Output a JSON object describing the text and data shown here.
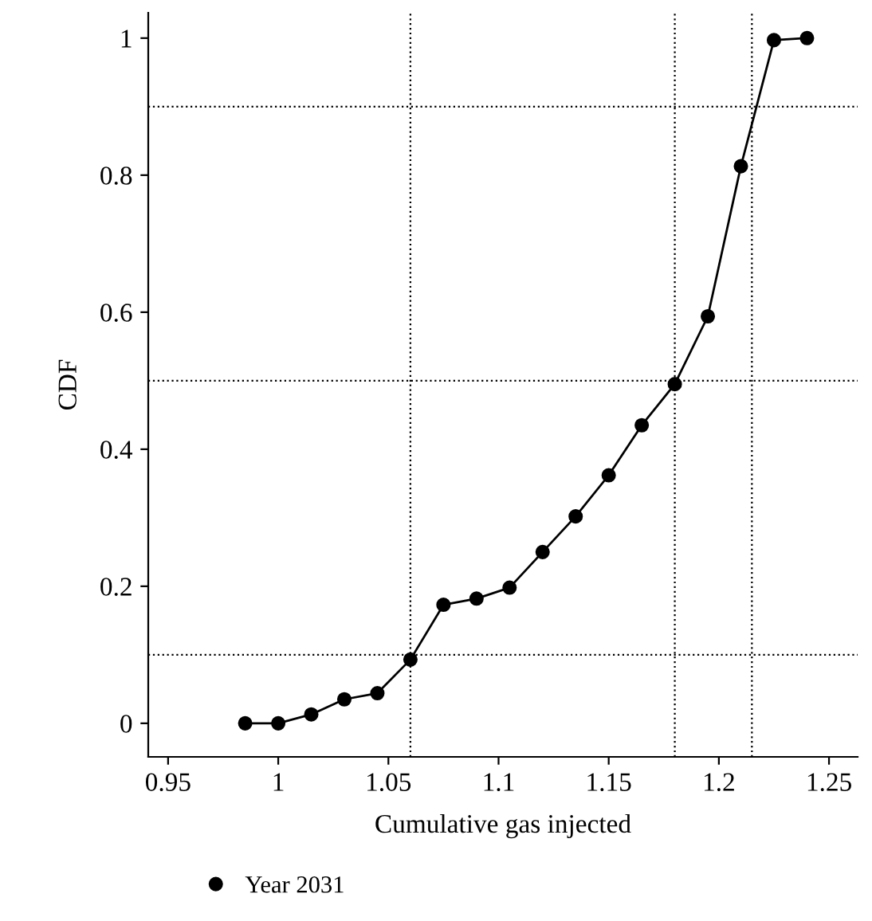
{
  "chart_data": {
    "type": "line",
    "xlabel": "Cumulative gas injected",
    "ylabel": "CDF",
    "x": [
      0.985,
      1.0,
      1.015,
      1.03,
      1.045,
      1.06,
      1.075,
      1.09,
      1.105,
      1.12,
      1.135,
      1.15,
      1.165,
      1.18,
      1.195,
      1.21,
      1.225,
      1.24
    ],
    "series": [
      {
        "name": "Year 2031",
        "color": "#000000",
        "values": [
          0,
          0,
          0.013,
          0.035,
          0.044,
          0.093,
          0.173,
          0.182,
          0.198,
          0.25,
          0.302,
          0.362,
          0.435,
          0.495,
          0.594,
          0.813,
          0.997,
          1.0
        ]
      }
    ],
    "marker": "circle",
    "line_style": "solid",
    "xlim": [
      0.941,
      1.263
    ],
    "ylim": [
      -0.049,
      1.037
    ],
    "xticks": [
      {
        "value": 0.95,
        "label": "0.95"
      },
      {
        "value": 1.0,
        "label": "1"
      },
      {
        "value": 1.05,
        "label": "1.05"
      },
      {
        "value": 1.1,
        "label": "1.1"
      },
      {
        "value": 1.15,
        "label": "1.15"
      },
      {
        "value": 1.2,
        "label": "1.2"
      },
      {
        "value": 1.25,
        "label": "1.25"
      }
    ],
    "yticks": [
      {
        "value": 0,
        "label": "0"
      },
      {
        "value": 0.2,
        "label": "0.2"
      },
      {
        "value": 0.4,
        "label": "0.4"
      },
      {
        "value": 0.6,
        "label": "0.6"
      },
      {
        "value": 0.8,
        "label": "0.8"
      },
      {
        "value": 1,
        "label": "1"
      }
    ],
    "ref_lines": [
      {
        "axis": "x",
        "value": 1.06,
        "line_style": "dotted"
      },
      {
        "axis": "x",
        "value": 1.18,
        "line_style": "dotted"
      },
      {
        "axis": "x",
        "value": 1.215,
        "line_style": "dotted"
      },
      {
        "axis": "y",
        "value": 0.1,
        "line_style": "dotted"
      },
      {
        "axis": "y",
        "value": 0.5,
        "line_style": "dotted"
      },
      {
        "axis": "y",
        "value": 0.9,
        "line_style": "dotted"
      }
    ],
    "grid": false,
    "legend": "bottom left"
  }
}
